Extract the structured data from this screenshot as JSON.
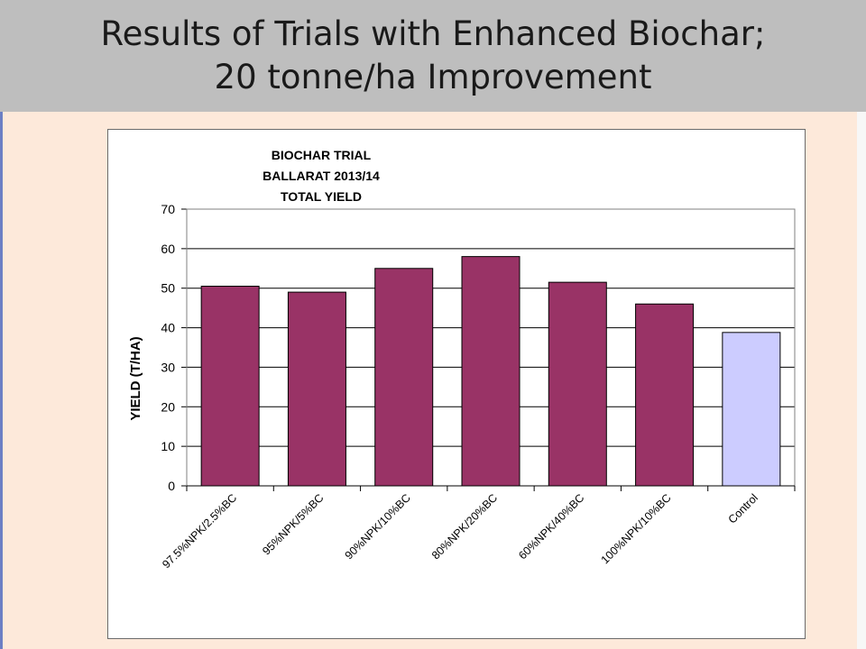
{
  "slide": {
    "title_line1": "Results of Trials with Enhanced Biochar;",
    "title_line2": "20 tonne/ha Improvement"
  },
  "colors": {
    "bar_treatment": "#993366",
    "bar_control": "#ccccff",
    "header_bg": "#bebebe",
    "slide_bg": "#fde9da"
  },
  "chart_data": {
    "type": "bar",
    "title_lines": [
      "BIOCHAR  TRIAL",
      "BALLARAT  2013/14",
      "TOTAL YIELD"
    ],
    "xlabel": "",
    "ylabel": "YIELD  (T/HA)",
    "ylim": [
      0,
      70
    ],
    "yticks": [
      0,
      10,
      20,
      30,
      40,
      50,
      60,
      70
    ],
    "grid": true,
    "categories": [
      "97.5%NPK/2.5%BC",
      "95%NPK/5%BC",
      "90%NPK/10%BC",
      "80%NPK/20%BC",
      "60%NPK/40%BC",
      "100%NPK/10%BC",
      "Control"
    ],
    "values": [
      50.5,
      49,
      55,
      58,
      51.5,
      46,
      38.8
    ],
    "bar_colors": [
      "#993366",
      "#993366",
      "#993366",
      "#993366",
      "#993366",
      "#993366",
      "#ccccff"
    ]
  }
}
